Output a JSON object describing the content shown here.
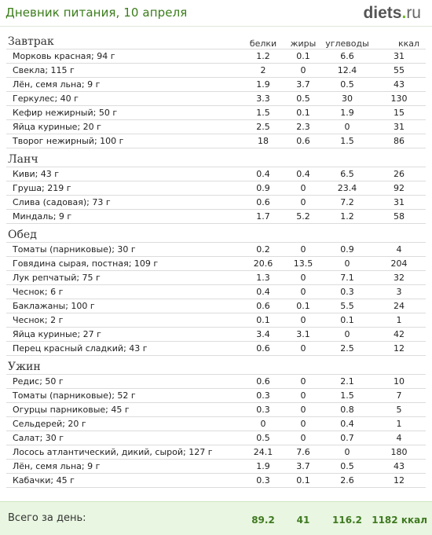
{
  "header": {
    "title": "Дневник питания, 10 апреля",
    "brand_name": "diets",
    "brand_dot": ".",
    "brand_tld": "ru"
  },
  "columns": {
    "protein": "белки",
    "fat": "жиры",
    "carbs": "углеводы",
    "kcal": "ккал"
  },
  "meals": [
    {
      "title": "Завтрак",
      "items": [
        {
          "name": "Морковь красная; 94 г",
          "protein": "1.2",
          "fat": "0.1",
          "carbs": "6.6",
          "kcal": "31"
        },
        {
          "name": "Свекла; 115 г",
          "protein": "2",
          "fat": "0",
          "carbs": "12.4",
          "kcal": "55"
        },
        {
          "name": "Лён, семя льна; 9 г",
          "protein": "1.9",
          "fat": "3.7",
          "carbs": "0.5",
          "kcal": "43"
        },
        {
          "name": "Геркулес; 40 г",
          "protein": "3.3",
          "fat": "0.5",
          "carbs": "30",
          "kcal": "130"
        },
        {
          "name": "Кефир нежирный; 50 г",
          "protein": "1.5",
          "fat": "0.1",
          "carbs": "1.9",
          "kcal": "15"
        },
        {
          "name": "Яйца куриные; 20 г",
          "protein": "2.5",
          "fat": "2.3",
          "carbs": "0",
          "kcal": "31"
        },
        {
          "name": "Творог нежирный; 100 г",
          "protein": "18",
          "fat": "0.6",
          "carbs": "1.5",
          "kcal": "86"
        }
      ]
    },
    {
      "title": "Ланч",
      "items": [
        {
          "name": "Киви; 43 г",
          "protein": "0.4",
          "fat": "0.4",
          "carbs": "6.5",
          "kcal": "26"
        },
        {
          "name": "Груша; 219 г",
          "protein": "0.9",
          "fat": "0",
          "carbs": "23.4",
          "kcal": "92"
        },
        {
          "name": "Слива (садовая); 73 г",
          "protein": "0.6",
          "fat": "0",
          "carbs": "7.2",
          "kcal": "31"
        },
        {
          "name": "Миндаль; 9 г",
          "protein": "1.7",
          "fat": "5.2",
          "carbs": "1.2",
          "kcal": "58"
        }
      ]
    },
    {
      "title": "Обед",
      "items": [
        {
          "name": "Томаты (парниковые); 30 г",
          "protein": "0.2",
          "fat": "0",
          "carbs": "0.9",
          "kcal": "4"
        },
        {
          "name": "Говядина сырая, постная; 109 г",
          "protein": "20.6",
          "fat": "13.5",
          "carbs": "0",
          "kcal": "204"
        },
        {
          "name": "Лук репчатый; 75 г",
          "protein": "1.3",
          "fat": "0",
          "carbs": "7.1",
          "kcal": "32"
        },
        {
          "name": "Чеснок; 6 г",
          "protein": "0.4",
          "fat": "0",
          "carbs": "0.3",
          "kcal": "3"
        },
        {
          "name": "Баклажаны; 100 г",
          "protein": "0.6",
          "fat": "0.1",
          "carbs": "5.5",
          "kcal": "24"
        },
        {
          "name": "Чеснок; 2 г",
          "protein": "0.1",
          "fat": "0",
          "carbs": "0.1",
          "kcal": "1"
        },
        {
          "name": "Яйца куриные; 27 г",
          "protein": "3.4",
          "fat": "3.1",
          "carbs": "0",
          "kcal": "42"
        },
        {
          "name": "Перец красный сладкий; 43 г",
          "protein": "0.6",
          "fat": "0",
          "carbs": "2.5",
          "kcal": "12"
        }
      ]
    },
    {
      "title": "Ужин",
      "items": [
        {
          "name": "Редис; 50 г",
          "protein": "0.6",
          "fat": "0",
          "carbs": "2.1",
          "kcal": "10"
        },
        {
          "name": "Томаты (парниковые); 52 г",
          "protein": "0.3",
          "fat": "0",
          "carbs": "1.5",
          "kcal": "7"
        },
        {
          "name": "Огурцы парниковые; 45 г",
          "protein": "0.3",
          "fat": "0",
          "carbs": "0.8",
          "kcal": "5"
        },
        {
          "name": "Сельдерей; 20 г",
          "protein": "0",
          "fat": "0",
          "carbs": "0.4",
          "kcal": "1"
        },
        {
          "name": "Салат; 30 г",
          "protein": "0.5",
          "fat": "0",
          "carbs": "0.7",
          "kcal": "4"
        },
        {
          "name": "Лосось атлантический, дикий, сырой; 127 г",
          "protein": "24.1",
          "fat": "7.6",
          "carbs": "0",
          "kcal": "180"
        },
        {
          "name": "Лён, семя льна; 9 г",
          "protein": "1.9",
          "fat": "3.7",
          "carbs": "0.5",
          "kcal": "43"
        },
        {
          "name": "Кабачки; 45 г",
          "protein": "0.3",
          "fat": "0.1",
          "carbs": "2.6",
          "kcal": "12"
        }
      ]
    }
  ],
  "totals": {
    "label": "Всего за день:",
    "protein": "89.2",
    "fat": "41",
    "carbs": "116.2",
    "kcal": "1182",
    "kcal_unit": "ккал"
  }
}
